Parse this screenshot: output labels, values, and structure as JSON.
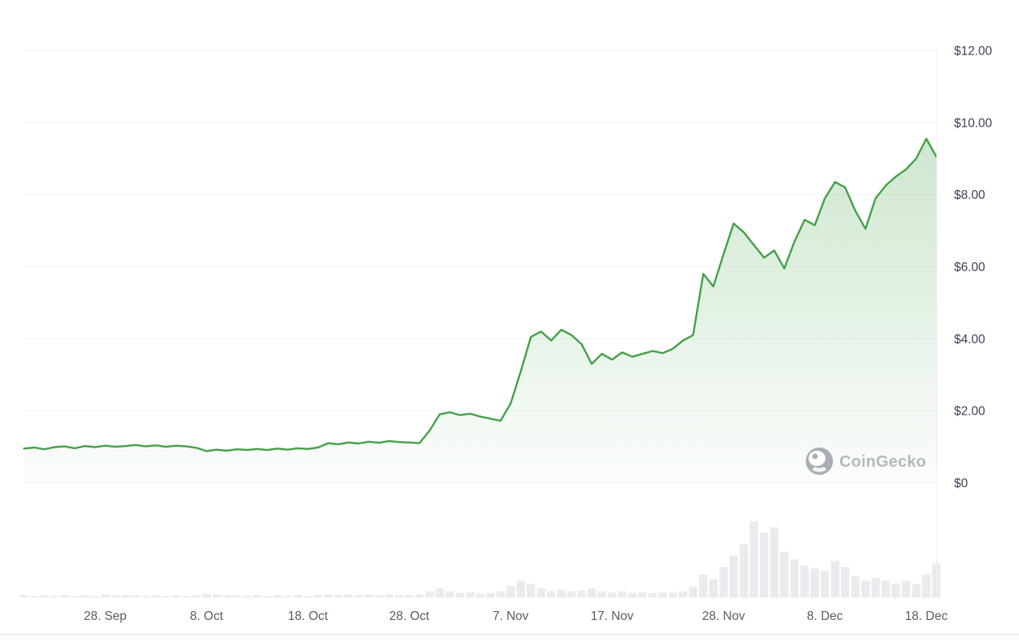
{
  "watermark": {
    "label": "CoinGecko"
  },
  "colors": {
    "line": "#43a047",
    "area_top": "rgba(67,160,71,0.26)",
    "area_bottom": "rgba(67,160,71,0.02)",
    "grid": "#f2f3f5",
    "axis_line": "#edeff2",
    "bottom_border": "#e7e9ed",
    "volume": "#e9ebee",
    "y_label": "#3a4254",
    "x_label": "#555c69",
    "watermark_icon": "#a9aeb5",
    "watermark_text": "#b4b8bf"
  },
  "chart_data": {
    "type": "area",
    "title": "",
    "ylabel": "",
    "xlabel": "",
    "ylim": [
      0,
      12
    ],
    "grid": true,
    "legend": "none",
    "currency_format": "USD",
    "y_ticks": [
      {
        "value": 0,
        "label": "$0"
      },
      {
        "value": 2,
        "label": "$2.00"
      },
      {
        "value": 4,
        "label": "$4.00"
      },
      {
        "value": 6,
        "label": "$6.00"
      },
      {
        "value": 8,
        "label": "$8.00"
      },
      {
        "value": 10,
        "label": "$10.00"
      },
      {
        "value": 12,
        "label": "$12.00"
      }
    ],
    "x_tick_labels": [
      "28. Sep",
      "8. Oct",
      "18. Oct",
      "28. Oct",
      "7. Nov",
      "17. Nov",
      "28. Nov",
      "8. Dec",
      "18. Dec"
    ],
    "x_tick_indices": [
      8,
      18,
      28,
      38,
      48,
      58,
      69,
      79,
      89
    ],
    "dates": [
      "Sep 20",
      "Sep 21",
      "Sep 22",
      "Sep 23",
      "Sep 24",
      "Sep 25",
      "Sep 26",
      "Sep 27",
      "Sep 28",
      "Sep 29",
      "Sep 30",
      "Oct 1",
      "Oct 2",
      "Oct 3",
      "Oct 4",
      "Oct 5",
      "Oct 6",
      "Oct 7",
      "Oct 8",
      "Oct 9",
      "Oct 10",
      "Oct 11",
      "Oct 12",
      "Oct 13",
      "Oct 14",
      "Oct 15",
      "Oct 16",
      "Oct 17",
      "Oct 18",
      "Oct 19",
      "Oct 20",
      "Oct 21",
      "Oct 22",
      "Oct 23",
      "Oct 24",
      "Oct 25",
      "Oct 26",
      "Oct 27",
      "Oct 28",
      "Oct 29",
      "Oct 30",
      "Oct 31",
      "Nov 1",
      "Nov 2",
      "Nov 3",
      "Nov 4",
      "Nov 5",
      "Nov 6",
      "Nov 7",
      "Nov 8",
      "Nov 9",
      "Nov 10",
      "Nov 11",
      "Nov 12",
      "Nov 13",
      "Nov 14",
      "Nov 15",
      "Nov 16",
      "Nov 17",
      "Nov 18",
      "Nov 19",
      "Nov 20",
      "Nov 21",
      "Nov 22",
      "Nov 23",
      "Nov 24",
      "Nov 25",
      "Nov 26",
      "Nov 27",
      "Nov 28",
      "Nov 29",
      "Nov 30",
      "Dec 1",
      "Dec 2",
      "Dec 3",
      "Dec 4",
      "Dec 5",
      "Dec 6",
      "Dec 7",
      "Dec 8",
      "Dec 9",
      "Dec 10",
      "Dec 11",
      "Dec 12",
      "Dec 13",
      "Dec 14",
      "Dec 15",
      "Dec 16",
      "Dec 17",
      "Dec 18",
      "Dec 19"
    ],
    "prices": [
      0.95,
      0.98,
      0.93,
      0.99,
      1.01,
      0.96,
      1.02,
      0.99,
      1.03,
      1.0,
      1.02,
      1.05,
      1.01,
      1.04,
      1.0,
      1.03,
      1.01,
      0.97,
      0.88,
      0.92,
      0.89,
      0.93,
      0.91,
      0.94,
      0.91,
      0.95,
      0.92,
      0.96,
      0.94,
      0.98,
      1.1,
      1.07,
      1.12,
      1.09,
      1.14,
      1.11,
      1.16,
      1.13,
      1.12,
      1.1,
      1.45,
      1.9,
      1.96,
      1.88,
      1.92,
      1.84,
      1.78,
      1.72,
      2.2,
      3.1,
      4.05,
      4.2,
      3.95,
      4.25,
      4.1,
      3.85,
      3.3,
      3.58,
      3.42,
      3.62,
      3.5,
      3.58,
      3.66,
      3.6,
      3.72,
      3.95,
      4.1,
      5.8,
      5.45,
      6.35,
      7.2,
      6.95,
      6.6,
      6.25,
      6.45,
      5.95,
      6.7,
      7.3,
      7.15,
      7.9,
      8.35,
      8.2,
      7.55,
      7.05,
      7.9,
      8.25,
      8.5,
      8.7,
      9.0,
      9.55,
      9.05
    ],
    "volumes": [
      3,
      2,
      3,
      2,
      3,
      2,
      3,
      2,
      4,
      3,
      3,
      3,
      2,
      3,
      2,
      3,
      2,
      3,
      5,
      4,
      3,
      3,
      2,
      3,
      2,
      3,
      2,
      3,
      2,
      3,
      4,
      3,
      4,
      3,
      4,
      3,
      4,
      3,
      3,
      4,
      8,
      12,
      8,
      6,
      7,
      5,
      6,
      8,
      15,
      22,
      18,
      12,
      8,
      10,
      8,
      9,
      12,
      8,
      7,
      8,
      6,
      7,
      6,
      7,
      6,
      8,
      14,
      30,
      24,
      40,
      55,
      70,
      100,
      85,
      92,
      60,
      50,
      42,
      38,
      35,
      48,
      40,
      28,
      22,
      26,
      22,
      18,
      22,
      18,
      30,
      45
    ]
  }
}
